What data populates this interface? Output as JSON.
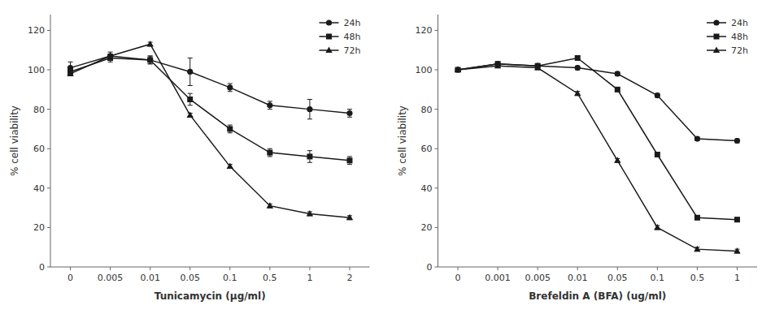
{
  "chart_data": [
    {
      "type": "line",
      "xlabel": "Tunicamycin (μg/ml)",
      "ylabel": "% cell viability",
      "categories": [
        "0",
        "0.005",
        "0.01",
        "0.05",
        "0.1",
        "0.5",
        "1",
        "2"
      ],
      "series": [
        {
          "name": "24h",
          "color": "#1a1a1a",
          "marker": "circle",
          "values": [
            101,
            107,
            105,
            99,
            91,
            82,
            80,
            78
          ],
          "errors": [
            3,
            2,
            2,
            7,
            2,
            2,
            5,
            2
          ]
        },
        {
          "name": "48h",
          "color": "#1a1a1a",
          "marker": "square",
          "values": [
            99,
            106,
            105,
            85,
            70,
            58,
            56,
            54
          ],
          "errors": [
            2,
            2,
            2,
            3,
            2,
            2,
            3,
            2
          ]
        },
        {
          "name": "72h",
          "color": "#1a1a1a",
          "marker": "triangle",
          "values": [
            98,
            107,
            113,
            77,
            51,
            31,
            27,
            25
          ],
          "errors": [
            1,
            1,
            1,
            1,
            1,
            1,
            1,
            1
          ]
        }
      ],
      "ylim": [
        0,
        128
      ],
      "yticks": [
        0,
        20,
        40,
        60,
        80,
        100,
        120
      ],
      "grid": false,
      "legend": "upper right"
    },
    {
      "type": "line",
      "xlabel": "Brefeldin A (BFA) (ug/ml)",
      "ylabel": "% cell viability",
      "categories": [
        "0",
        "0.001",
        "0.005",
        "0.01",
        "0.05",
        "0.1",
        "0.5",
        "1"
      ],
      "series": [
        {
          "name": "24h",
          "color": "#1a1a1a",
          "marker": "circle",
          "values": [
            100,
            103,
            102,
            101,
            98,
            87,
            65,
            64
          ],
          "errors": [
            1,
            1,
            1,
            1,
            1,
            1,
            1,
            1
          ]
        },
        {
          "name": "48h",
          "color": "#1a1a1a",
          "marker": "square",
          "values": [
            100,
            103,
            102,
            106,
            90,
            57,
            25,
            24
          ],
          "errors": [
            1,
            1,
            1,
            1,
            1,
            1,
            1,
            1
          ]
        },
        {
          "name": "72h",
          "color": "#1a1a1a",
          "marker": "triangle",
          "values": [
            100,
            102,
            101,
            88,
            54,
            20,
            9,
            8
          ],
          "errors": [
            1,
            1,
            1,
            1,
            1,
            1,
            1,
            1
          ]
        }
      ],
      "ylim": [
        0,
        128
      ],
      "yticks": [
        0,
        20,
        40,
        60,
        80,
        100,
        120
      ],
      "grid": false,
      "legend": "upper right"
    }
  ]
}
